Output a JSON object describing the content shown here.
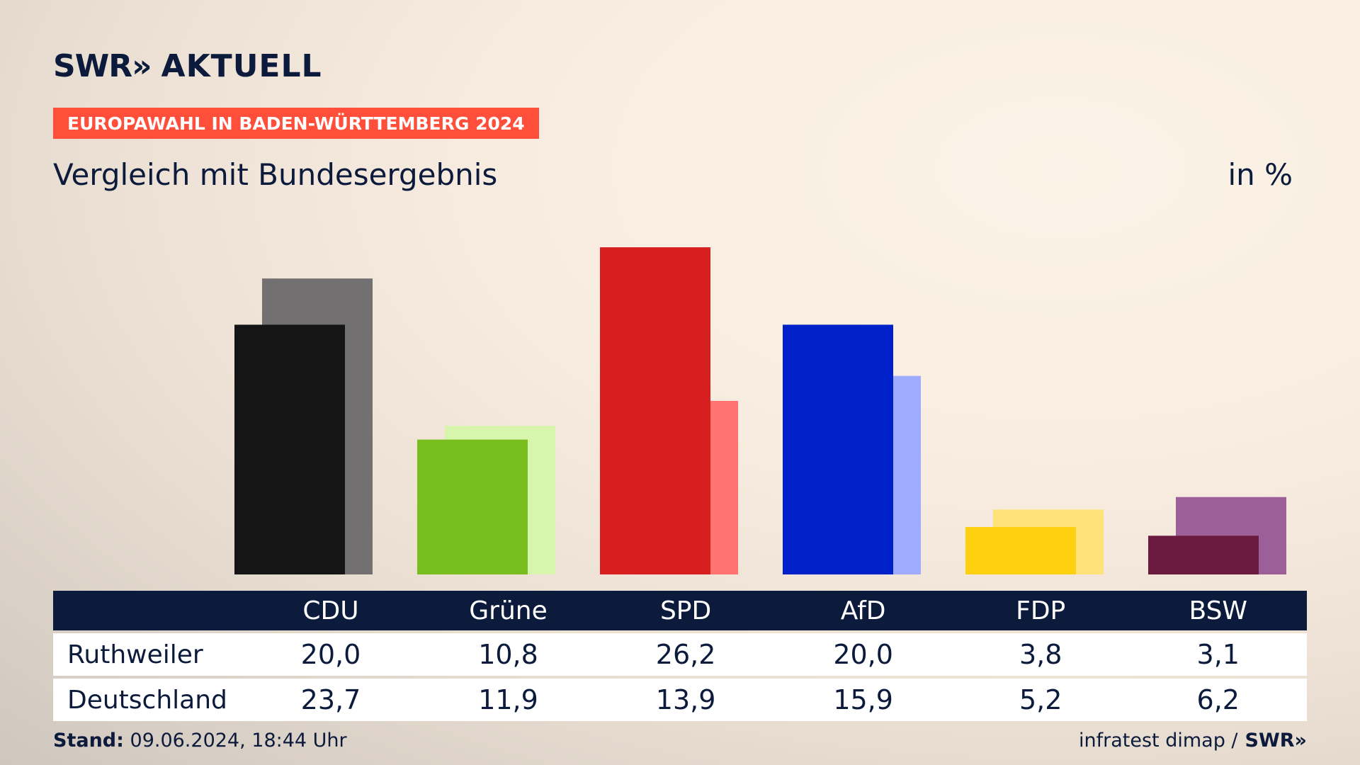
{
  "header": {
    "logo_swr": "SWR»",
    "logo_app": "AKTUELL",
    "badge": "EUROPAWAHL IN BADEN-WÜRTTEMBERG 2024",
    "subtitle": "Vergleich mit Bundesergebnis",
    "unit": "in %"
  },
  "chart_data": {
    "type": "bar",
    "categories": [
      "CDU",
      "Grüne",
      "SPD",
      "AfD",
      "FDP",
      "BSW"
    ],
    "series": [
      {
        "name": "Ruthweiler",
        "values": [
          20.0,
          10.8,
          26.2,
          20.0,
          3.8,
          3.1
        ],
        "colors": [
          "#151515",
          "#78be1e",
          "#d71f1f",
          "#0021c9",
          "#ffd00f",
          "#6b1a40"
        ]
      },
      {
        "name": "Deutschland",
        "values": [
          23.7,
          11.9,
          13.9,
          15.9,
          5.2,
          6.2
        ],
        "colors": [
          "#727070",
          "#d8f5ad",
          "#ff7370",
          "#9fabff",
          "#ffe37a",
          "#9c5f98"
        ]
      }
    ],
    "ylim": [
      0,
      27
    ]
  },
  "table": {
    "headers": [
      "CDU",
      "Grüne",
      "SPD",
      "AfD",
      "FDP",
      "BSW"
    ],
    "rows": [
      {
        "label": "Ruthweiler",
        "values": [
          "20,0",
          "10,8",
          "26,2",
          "20,0",
          "3,8",
          "3,1"
        ]
      },
      {
        "label": "Deutschland",
        "values": [
          "23,7",
          "11,9",
          "13,9",
          "15,9",
          "5,2",
          "6,2"
        ]
      }
    ]
  },
  "footer": {
    "stand_label": "Stand:",
    "stand_value": "09.06.2024, 18:44 Uhr",
    "source": "infratest dimap /",
    "source_logo": "SWR»"
  }
}
